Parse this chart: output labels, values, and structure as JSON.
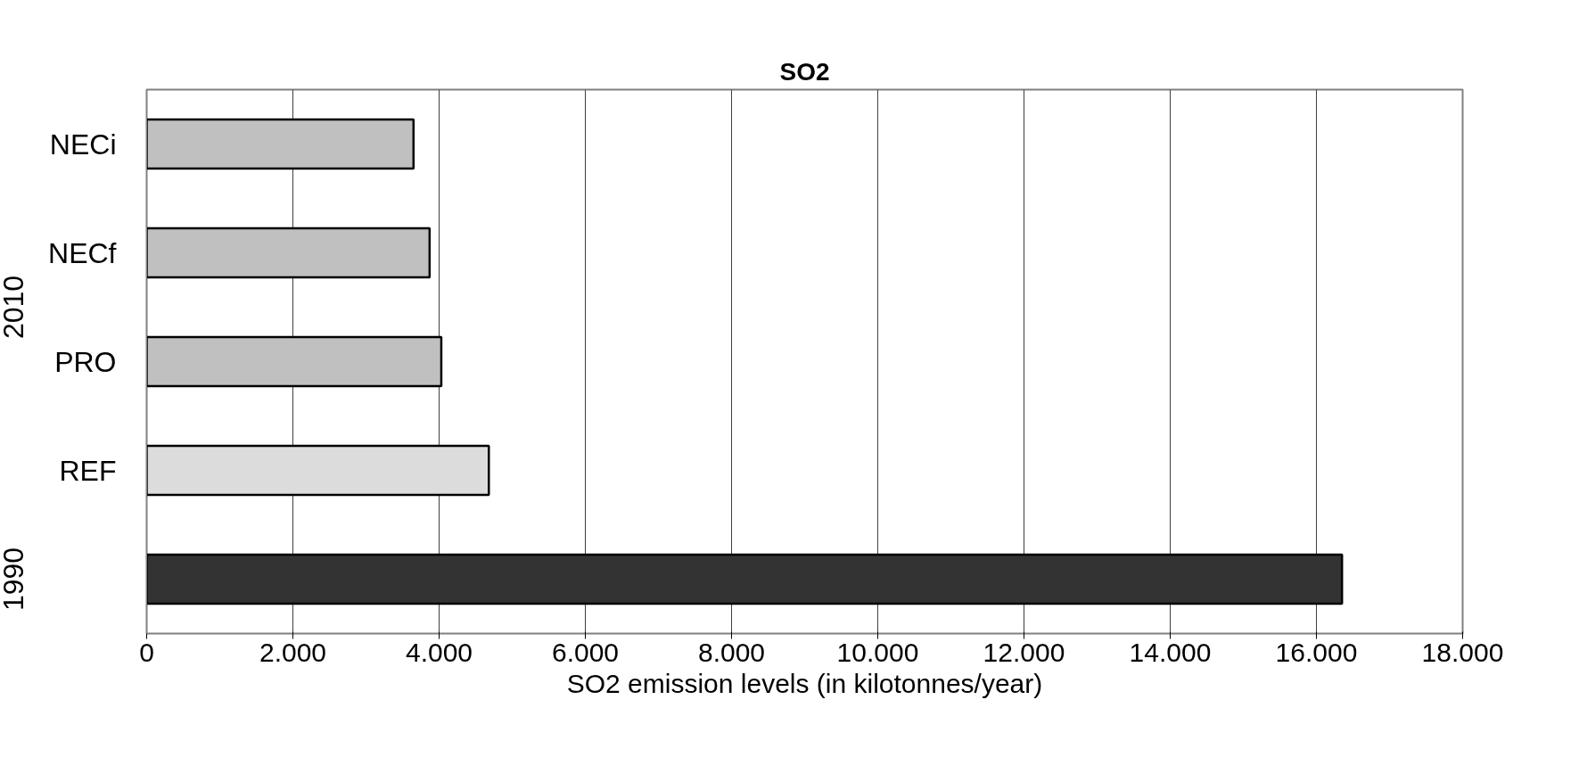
{
  "chart_data": {
    "type": "bar",
    "orientation": "horizontal",
    "title": "SO2",
    "xlabel": "SO2 emission levels (in kilotonnes/year)",
    "categories": [
      "NECi",
      "NECf",
      "PRO",
      "REF",
      null
    ],
    "values": [
      3650,
      3870,
      4030,
      4680,
      16350
    ],
    "colors": [
      "#c0c0c0",
      "#c0c0c0",
      "#c0c0c0",
      "#dcdcdc",
      "#333333"
    ],
    "annotations": [
      "2010",
      "1990"
    ],
    "xlim": [
      0,
      18000
    ],
    "xticks": [
      0,
      {
        "value": 2000,
        "label": "2.000"
      },
      {
        "value": 4000,
        "label": "4.000"
      },
      {
        "value": 6000,
        "label": "6.000"
      },
      {
        "value": 8000,
        "label": "8.000"
      },
      {
        "value": 10000,
        "label": "10.000"
      },
      {
        "value": 12000,
        "label": "12.000"
      },
      {
        "value": 14000,
        "label": "14.000"
      },
      {
        "value": 16000,
        "label": "16.000"
      },
      {
        "value": 18000,
        "label": "18.000"
      }
    ],
    "grid": "x"
  }
}
